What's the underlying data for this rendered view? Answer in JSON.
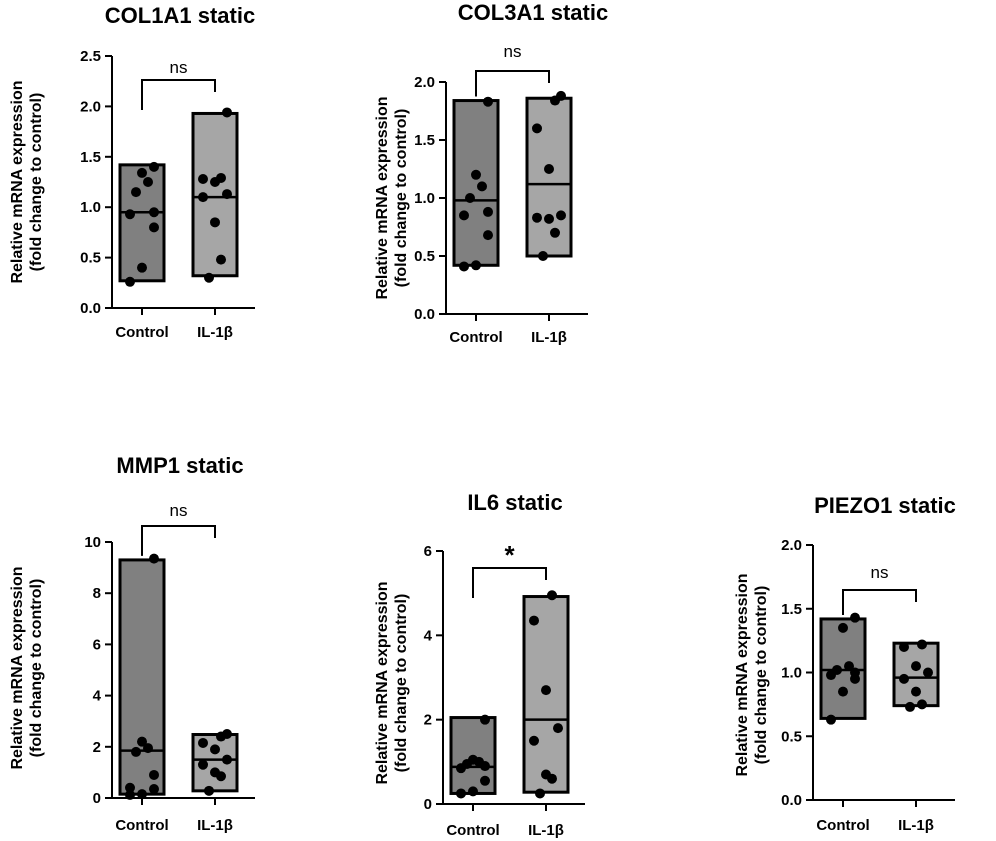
{
  "figure": {
    "background": "#ffffff"
  },
  "colors": {
    "control": "#808080",
    "treated": "#a6a6a6",
    "stroke": "#000000",
    "point": "#000000"
  },
  "chart_data": [
    {
      "type": "box",
      "title": "COL1A1 static",
      "ylabel_line1": "Relative mRNA expression",
      "ylabel_line2": "(fold change to control)",
      "categories": [
        "Control",
        "IL-1β"
      ],
      "ylim": [
        0,
        2.5
      ],
      "yticks": [
        0.0,
        0.5,
        1.0,
        1.5,
        2.0,
        2.5
      ],
      "tick_labels": [
        "0.0",
        "0.5",
        "1.0",
        "1.5",
        "2.0",
        "2.5"
      ],
      "series": [
        {
          "name": "Control",
          "min": 0.27,
          "max": 1.42,
          "median": 0.95,
          "points": [
            0.26,
            0.4,
            0.8,
            0.93,
            0.95,
            1.15,
            1.25,
            1.34,
            1.4
          ]
        },
        {
          "name": "IL-1β",
          "min": 0.32,
          "max": 1.93,
          "median": 1.1,
          "points": [
            0.3,
            0.48,
            0.85,
            1.1,
            1.13,
            1.25,
            1.28,
            1.29,
            1.94
          ]
        }
      ],
      "significance": "ns"
    },
    {
      "type": "box",
      "title": "COL3A1 static",
      "ylabel_line1": "Relative mRNA expression",
      "ylabel_line2": "(fold change to control)",
      "categories": [
        "Control",
        "IL-1β"
      ],
      "ylim": [
        0,
        2.0
      ],
      "yticks": [
        0.0,
        0.5,
        1.0,
        1.5,
        2.0
      ],
      "tick_labels": [
        "0.0",
        "0.5",
        "1.0",
        "1.5",
        "2.0"
      ],
      "series": [
        {
          "name": "Control",
          "min": 0.42,
          "max": 1.84,
          "median": 0.98,
          "points": [
            0.41,
            0.42,
            0.68,
            0.85,
            0.88,
            1.0,
            1.1,
            1.2,
            1.83
          ]
        },
        {
          "name": "IL-1β",
          "min": 0.5,
          "max": 1.86,
          "median": 1.12,
          "points": [
            0.5,
            0.7,
            0.82,
            0.83,
            0.85,
            1.25,
            1.6,
            1.84,
            1.88
          ]
        }
      ],
      "significance": "ns"
    },
    {
      "type": "box",
      "title": "MMP1 static",
      "ylabel_line1": "Relative mRNA expression",
      "ylabel_line2": "(fold change to control)",
      "categories": [
        "Control",
        "IL-1β"
      ],
      "ylim": [
        0,
        10
      ],
      "yticks": [
        0,
        2,
        4,
        6,
        8,
        10
      ],
      "tick_labels": [
        "0",
        "2",
        "4",
        "6",
        "8",
        "10"
      ],
      "series": [
        {
          "name": "Control",
          "min": 0.15,
          "max": 9.3,
          "median": 1.85,
          "points": [
            0.12,
            0.15,
            0.35,
            0.4,
            0.9,
            1.8,
            1.95,
            2.2,
            9.35
          ]
        },
        {
          "name": "IL-1β",
          "min": 0.28,
          "max": 2.48,
          "median": 1.5,
          "points": [
            0.28,
            0.85,
            1.0,
            1.3,
            1.5,
            1.9,
            2.15,
            2.4,
            2.5
          ]
        }
      ],
      "significance": "ns"
    },
    {
      "type": "box",
      "title": "IL6 static",
      "ylabel_line1": "Relative mRNA expression",
      "ylabel_line2": "(fold change to control)",
      "categories": [
        "Control",
        "IL-1β"
      ],
      "ylim": [
        0,
        6
      ],
      "yticks": [
        0,
        2,
        4,
        6
      ],
      "tick_labels": [
        "0",
        "2",
        "4",
        "6"
      ],
      "series": [
        {
          "name": "Control",
          "min": 0.25,
          "max": 2.05,
          "median": 0.88,
          "points": [
            0.25,
            0.3,
            0.55,
            0.85,
            0.9,
            0.95,
            1.0,
            1.05,
            2.0
          ]
        },
        {
          "name": "IL-1β",
          "min": 0.28,
          "max": 4.92,
          "median": 2.0,
          "points": [
            0.25,
            0.6,
            0.7,
            1.5,
            1.8,
            2.7,
            4.35,
            4.95
          ]
        }
      ],
      "significance": "*"
    },
    {
      "type": "box",
      "title": "PIEZO1 static",
      "ylabel_line1": "Relative mRNA expression",
      "ylabel_line2": "(fold change to control)",
      "categories": [
        "Control",
        "IL-1β"
      ],
      "ylim": [
        0,
        2.0
      ],
      "yticks": [
        0.0,
        0.5,
        1.0,
        1.5,
        2.0
      ],
      "tick_labels": [
        "0.0",
        "0.5",
        "1.0",
        "1.5",
        "2.0"
      ],
      "series": [
        {
          "name": "Control",
          "min": 0.64,
          "max": 1.42,
          "median": 1.02,
          "points": [
            0.63,
            0.85,
            0.95,
            0.98,
            1.0,
            1.02,
            1.05,
            1.35,
            1.43
          ]
        },
        {
          "name": "IL-1β",
          "min": 0.74,
          "max": 1.23,
          "median": 0.96,
          "points": [
            0.73,
            0.75,
            0.85,
            0.95,
            1.0,
            1.05,
            1.2,
            1.22
          ]
        }
      ],
      "significance": "ns"
    }
  ]
}
